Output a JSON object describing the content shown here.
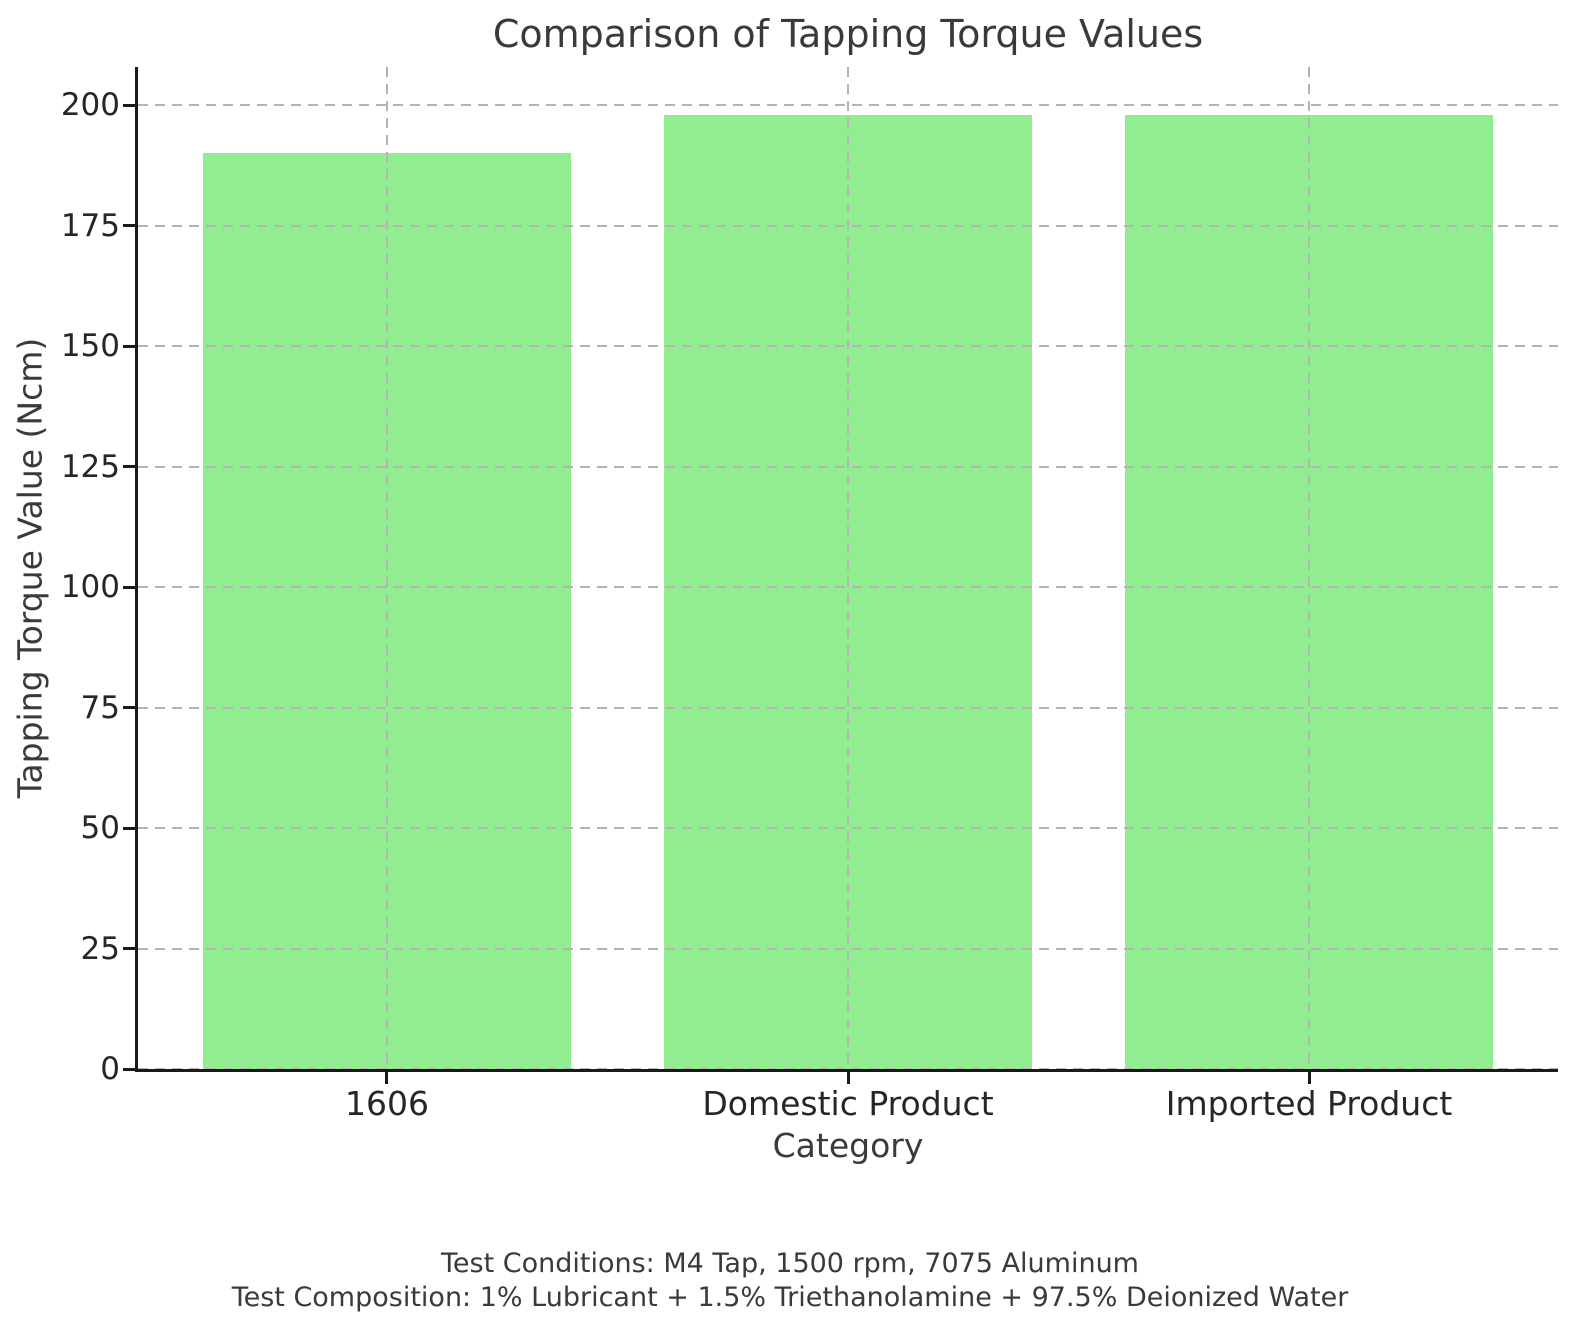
{
  "chart_data": {
    "type": "bar",
    "title": "Comparison of Tapping Torque Values",
    "xlabel": "Category",
    "ylabel": "Tapping Torque Value (Ncm)",
    "categories": [
      "1606",
      "Domestic Product",
      "Imported Product"
    ],
    "values": [
      190,
      198,
      198
    ],
    "yticks": [
      0,
      25,
      50,
      75,
      100,
      125,
      150,
      175,
      200
    ],
    "ylim": [
      0,
      207.9
    ],
    "bar_color": "#90EE90",
    "grid": "both",
    "grid_style": "dashed",
    "grid_color": "#b4b4b4",
    "axis_color": "#1a1a1a",
    "legend": "none"
  },
  "footer": {
    "line1": "Test Conditions: M4 Tap, 1500 rpm, 7075 Aluminum",
    "line2": "Test Composition: 1% Lubricant + 1.5% Triethanolamine + 97.5% Deionized Water"
  }
}
